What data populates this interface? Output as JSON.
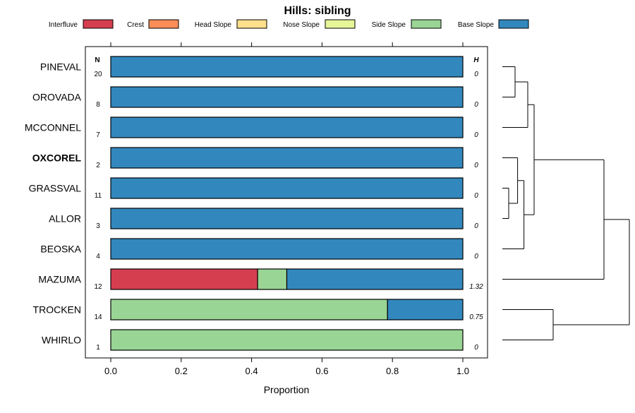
{
  "chart_data": {
    "type": "bar",
    "stacked": true,
    "orientation": "horizontal",
    "title": "Hills: sibling",
    "xlabel": "Proportion",
    "xlim": [
      0,
      1
    ],
    "xticks": [
      "0.0",
      "0.2",
      "0.4",
      "0.6",
      "0.8",
      "1.0"
    ],
    "n_header": "N",
    "h_header": "H",
    "legend": [
      {
        "name": "Interfluve",
        "color": "#D53E4F"
      },
      {
        "name": "Crest",
        "color": "#FC8D59"
      },
      {
        "name": "Head Slope",
        "color": "#FEE08B"
      },
      {
        "name": "Nose Slope",
        "color": "#E6F598"
      },
      {
        "name": "Side Slope",
        "color": "#99D594"
      },
      {
        "name": "Base Slope",
        "color": "#3288BD"
      }
    ],
    "categories": [
      "PINEVAL",
      "OROVADA",
      "MCCONNEL",
      "OXCOREL",
      "GRASSVAL",
      "ALLOR",
      "BEOSKA",
      "MAZUMA",
      "TROCKEN",
      "WHIRLO"
    ],
    "highlight": "OXCOREL",
    "n": [
      "20",
      "8",
      "7",
      "2",
      "11",
      "3",
      "4",
      "12",
      "14",
      "1"
    ],
    "h": [
      "0",
      "0",
      "0",
      "0",
      "0",
      "0",
      "0",
      "1.32",
      "0.75",
      "0"
    ],
    "series": [
      {
        "name": "Interfluve",
        "values": [
          0,
          0,
          0,
          0,
          0,
          0,
          0,
          0.417,
          0,
          0
        ]
      },
      {
        "name": "Crest",
        "values": [
          0,
          0,
          0,
          0,
          0,
          0,
          0,
          0,
          0,
          0
        ]
      },
      {
        "name": "Head Slope",
        "values": [
          0,
          0,
          0,
          0,
          0,
          0,
          0,
          0,
          0,
          0
        ]
      },
      {
        "name": "Nose Slope",
        "values": [
          0,
          0,
          0,
          0,
          0,
          0,
          0,
          0,
          0,
          0
        ]
      },
      {
        "name": "Side Slope",
        "values": [
          0,
          0,
          0,
          0,
          0,
          0,
          0,
          0.083,
          0.786,
          1
        ]
      },
      {
        "name": "Base Slope",
        "values": [
          1,
          1,
          1,
          1,
          1,
          1,
          1,
          0.5,
          0.214,
          0
        ]
      }
    ],
    "dendrogram_merges": [
      [
        "PINEVAL",
        "OROVADA",
        0.1
      ],
      [
        "GRASSVAL",
        "ALLOR",
        0.05
      ],
      [
        "OXCOREL",
        "GRASSVAL+ALLOR",
        0.12
      ],
      [
        "OXCOREL+GRASSVAL+ALLOR",
        "BEOSKA",
        0.17
      ],
      [
        "PINEVAL+OROVADA",
        "MCCONNEL",
        0.2
      ],
      [
        "PINEVAL+OROVADA+MCCONNEL",
        "OXCOREL+GRASSVAL+ALLOR+BEOSKA",
        0.25
      ],
      [
        "TROCKEN",
        "WHIRLO",
        0.4
      ],
      [
        "PINEVAL..BEOSKA",
        "MAZUMA",
        0.8
      ],
      [
        "PINEVAL..MAZUMA",
        "TROCKEN+WHIRLO",
        1.0
      ]
    ]
  }
}
